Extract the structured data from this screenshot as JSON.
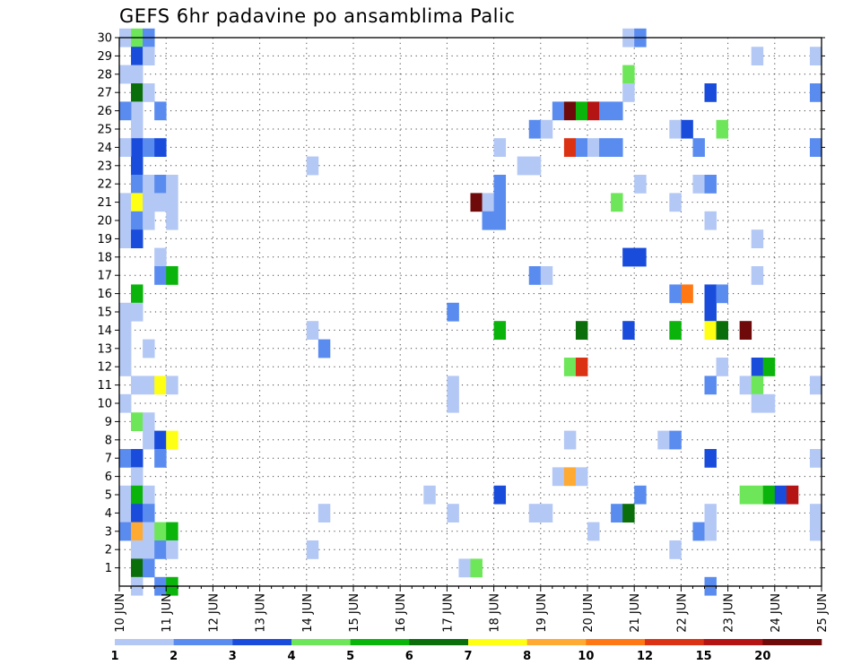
{
  "chart_data": {
    "type": "heatmap",
    "title": "GEFS 6hr padavine po ansamblima Palic",
    "xlabel": "",
    "ylabel": "",
    "x_tick_labels": [
      "10 JUN",
      "11 JUN",
      "12 JUN",
      "13 JUN",
      "14 JUN",
      "15 JUN",
      "16 JUN",
      "17 JUN",
      "18 JUN",
      "19 JUN",
      "20 JUN",
      "21 JUN",
      "22 JUN",
      "23 JUN",
      "24 JUN",
      "25 JUN"
    ],
    "x_range": [
      "10 JUN 00Z",
      "25 JUN 00Z"
    ],
    "x_step": "6hr",
    "y_tick_labels": [
      "1",
      "2",
      "3",
      "4",
      "5",
      "6",
      "7",
      "8",
      "9",
      "10",
      "11",
      "12",
      "13",
      "14",
      "15",
      "16",
      "17",
      "18",
      "19",
      "20",
      "21",
      "22",
      "23",
      "24",
      "25",
      "26",
      "27",
      "28",
      "29",
      "30"
    ],
    "y_range": [
      0,
      30
    ],
    "grid": true,
    "colorbar": {
      "labels": [
        "1",
        "2",
        "3",
        "4",
        "5",
        "6",
        "7",
        "8",
        "10",
        "12",
        "15",
        "20"
      ],
      "colors": [
        "#b4c8f5",
        "#5a8cf0",
        "#1a4cdc",
        "#6ee65a",
        "#0ab40a",
        "#0a6e0a",
        "#ffff14",
        "#ffaa32",
        "#ff7814",
        "#dc3214",
        "#b41414",
        "#6e0a0a"
      ]
    },
    "cells": [
      {
        "step": 0,
        "member": 30,
        "bin": 0
      },
      {
        "step": 1,
        "member": 30,
        "bin": 3
      },
      {
        "step": 1,
        "member": 29,
        "bin": 2
      },
      {
        "step": 0,
        "member": 28,
        "bin": 0
      },
      {
        "step": 1,
        "member": 28,
        "bin": 0
      },
      {
        "step": 1,
        "member": 27,
        "bin": 5
      },
      {
        "step": 1,
        "member": 26,
        "bin": 0
      },
      {
        "step": 0,
        "member": 26,
        "bin": 1
      },
      {
        "step": 1,
        "member": 25,
        "bin": 0
      },
      {
        "step": 1,
        "member": 24,
        "bin": 2
      },
      {
        "step": 0,
        "member": 24,
        "bin": 0
      },
      {
        "step": 1,
        "member": 23,
        "bin": 2
      },
      {
        "step": 1,
        "member": 22,
        "bin": 1
      },
      {
        "step": 0,
        "member": 21,
        "bin": 0
      },
      {
        "step": 1,
        "member": 21,
        "bin": 6
      },
      {
        "step": 0,
        "member": 20,
        "bin": 0
      },
      {
        "step": 1,
        "member": 20,
        "bin": 1
      },
      {
        "step": 0,
        "member": 19,
        "bin": 0
      },
      {
        "step": 1,
        "member": 19,
        "bin": 2
      },
      {
        "step": 1,
        "member": 16,
        "bin": 4
      },
      {
        "step": 0,
        "member": 15,
        "bin": 0
      },
      {
        "step": 1,
        "member": 15,
        "bin": 0
      },
      {
        "step": 0,
        "member": 14,
        "bin": 0
      },
      {
        "step": 0,
        "member": 13,
        "bin": 0
      },
      {
        "step": 0,
        "member": 12,
        "bin": 0
      },
      {
        "step": 1,
        "member": 11,
        "bin": 0
      },
      {
        "step": 0,
        "member": 10,
        "bin": 0
      },
      {
        "step": 1,
        "member": 9,
        "bin": 3
      },
      {
        "step": 0,
        "member": 7,
        "bin": 1
      },
      {
        "step": 1,
        "member": 7,
        "bin": 2
      },
      {
        "step": 1,
        "member": 6,
        "bin": 0
      },
      {
        "step": 0,
        "member": 5,
        "bin": 0
      },
      {
        "step": 1,
        "member": 5,
        "bin": 4
      },
      {
        "step": 0,
        "member": 4,
        "bin": 0
      },
      {
        "step": 1,
        "member": 4,
        "bin": 2
      },
      {
        "step": 0,
        "member": 3,
        "bin": 1
      },
      {
        "step": 1,
        "member": 3,
        "bin": 7
      },
      {
        "step": 1,
        "member": 2,
        "bin": 0
      },
      {
        "step": 1,
        "member": 1,
        "bin": 5
      },
      {
        "step": 1,
        "member": 0,
        "bin": 0
      },
      {
        "step": 2,
        "member": 30,
        "bin": 1
      },
      {
        "step": 2,
        "member": 29,
        "bin": 0
      },
      {
        "step": 2,
        "member": 27,
        "bin": 0
      },
      {
        "step": 2,
        "member": 24,
        "bin": 1
      },
      {
        "step": 2,
        "member": 22,
        "bin": 0
      },
      {
        "step": 2,
        "member": 21,
        "bin": 0
      },
      {
        "step": 2,
        "member": 20,
        "bin": 0
      },
      {
        "step": 2,
        "member": 13,
        "bin": 0
      },
      {
        "step": 2,
        "member": 11,
        "bin": 0
      },
      {
        "step": 2,
        "member": 9,
        "bin": 0
      },
      {
        "step": 2,
        "member": 8,
        "bin": 0
      },
      {
        "step": 2,
        "member": 5,
        "bin": 0
      },
      {
        "step": 2,
        "member": 4,
        "bin": 1
      },
      {
        "step": 2,
        "member": 3,
        "bin": 0
      },
      {
        "step": 2,
        "member": 2,
        "bin": 0
      },
      {
        "step": 2,
        "member": 1,
        "bin": 1
      },
      {
        "step": 3,
        "member": 26,
        "bin": 1
      },
      {
        "step": 3,
        "member": 24,
        "bin": 2
      },
      {
        "step": 3,
        "member": 22,
        "bin": 1
      },
      {
        "step": 4,
        "member": 22,
        "bin": 0
      },
      {
        "step": 3,
        "member": 21,
        "bin": 0
      },
      {
        "step": 4,
        "member": 21,
        "bin": 0
      },
      {
        "step": 4,
        "member": 20,
        "bin": 0
      },
      {
        "step": 3,
        "member": 18,
        "bin": 0
      },
      {
        "step": 3,
        "member": 17,
        "bin": 1
      },
      {
        "step": 4,
        "member": 17,
        "bin": 4
      },
      {
        "step": 3,
        "member": 11,
        "bin": 6
      },
      {
        "step": 4,
        "member": 11,
        "bin": 0
      },
      {
        "step": 3,
        "member": 8,
        "bin": 2
      },
      {
        "step": 4,
        "member": 8,
        "bin": 6
      },
      {
        "step": 3,
        "member": 7,
        "bin": 1
      },
      {
        "step": 3,
        "member": 3,
        "bin": 3
      },
      {
        "step": 4,
        "member": 3,
        "bin": 4
      },
      {
        "step": 3,
        "member": 2,
        "bin": 1
      },
      {
        "step": 4,
        "member": 2,
        "bin": 0
      },
      {
        "step": 3,
        "member": 0,
        "bin": 1
      },
      {
        "step": 4,
        "member": 0,
        "bin": 4
      },
      {
        "step": 16,
        "member": 23,
        "bin": 0
      },
      {
        "step": 16,
        "member": 14,
        "bin": 0
      },
      {
        "step": 17,
        "member": 13,
        "bin": 1
      },
      {
        "step": 17,
        "member": 4,
        "bin": 0
      },
      {
        "step": 16,
        "member": 2,
        "bin": 0
      },
      {
        "step": 26,
        "member": 5,
        "bin": 0
      },
      {
        "step": 28,
        "member": 15,
        "bin": 1
      },
      {
        "step": 28,
        "member": 11,
        "bin": 0
      },
      {
        "step": 28,
        "member": 10,
        "bin": 0
      },
      {
        "step": 28,
        "member": 4,
        "bin": 0
      },
      {
        "step": 29,
        "member": 1,
        "bin": 0
      },
      {
        "step": 30,
        "member": 1,
        "bin": 3
      },
      {
        "step": 30,
        "member": 21,
        "bin": 11
      },
      {
        "step": 31,
        "member": 21,
        "bin": 0
      },
      {
        "step": 32,
        "member": 21,
        "bin": 1
      },
      {
        "step": 32,
        "member": 22,
        "bin": 1
      },
      {
        "step": 32,
        "member": 20,
        "bin": 1
      },
      {
        "step": 31,
        "member": 20,
        "bin": 1
      },
      {
        "step": 32,
        "member": 24,
        "bin": 0
      },
      {
        "step": 32,
        "member": 14,
        "bin": 4
      },
      {
        "step": 32,
        "member": 5,
        "bin": 2
      },
      {
        "step": 35,
        "member": 25,
        "bin": 1
      },
      {
        "step": 36,
        "member": 25,
        "bin": 0
      },
      {
        "step": 34,
        "member": 23,
        "bin": 0
      },
      {
        "step": 35,
        "member": 23,
        "bin": 0
      },
      {
        "step": 35,
        "member": 17,
        "bin": 1
      },
      {
        "step": 36,
        "member": 17,
        "bin": 0
      },
      {
        "step": 35,
        "member": 4,
        "bin": 0
      },
      {
        "step": 36,
        "member": 4,
        "bin": 0
      },
      {
        "step": 37,
        "member": 26,
        "bin": 1
      },
      {
        "step": 38,
        "member": 26,
        "bin": 11
      },
      {
        "step": 39,
        "member": 26,
        "bin": 4
      },
      {
        "step": 40,
        "member": 26,
        "bin": 10
      },
      {
        "step": 41,
        "member": 26,
        "bin": 1
      },
      {
        "step": 42,
        "member": 26,
        "bin": 1
      },
      {
        "step": 38,
        "member": 24,
        "bin": 9
      },
      {
        "step": 39,
        "member": 24,
        "bin": 1
      },
      {
        "step": 40,
        "member": 24,
        "bin": 0
      },
      {
        "step": 41,
        "member": 24,
        "bin": 1
      },
      {
        "step": 42,
        "member": 24,
        "bin": 1
      },
      {
        "step": 39,
        "member": 14,
        "bin": 5
      },
      {
        "step": 38,
        "member": 12,
        "bin": 3
      },
      {
        "step": 39,
        "member": 12,
        "bin": 9
      },
      {
        "step": 38,
        "member": 8,
        "bin": 0
      },
      {
        "step": 37,
        "member": 6,
        "bin": 0
      },
      {
        "step": 38,
        "member": 6,
        "bin": 7
      },
      {
        "step": 39,
        "member": 6,
        "bin": 0
      },
      {
        "step": 40,
        "member": 3,
        "bin": 0
      },
      {
        "step": 43,
        "member": 30,
        "bin": 0
      },
      {
        "step": 44,
        "member": 30,
        "bin": 1
      },
      {
        "step": 43,
        "member": 28,
        "bin": 3
      },
      {
        "step": 43,
        "member": 27,
        "bin": 0
      },
      {
        "step": 44,
        "member": 22,
        "bin": 0
      },
      {
        "step": 42,
        "member": 21,
        "bin": 3
      },
      {
        "step": 43,
        "member": 18,
        "bin": 2
      },
      {
        "step": 44,
        "member": 18,
        "bin": 2
      },
      {
        "step": 43,
        "member": 14,
        "bin": 2
      },
      {
        "step": 44,
        "member": 5,
        "bin": 1
      },
      {
        "step": 42,
        "member": 4,
        "bin": 1
      },
      {
        "step": 43,
        "member": 4,
        "bin": 5
      },
      {
        "step": 47,
        "member": 25,
        "bin": 0
      },
      {
        "step": 48,
        "member": 25,
        "bin": 2
      },
      {
        "step": 47,
        "member": 21,
        "bin": 0
      },
      {
        "step": 48,
        "member": 16,
        "bin": 8
      },
      {
        "step": 47,
        "member": 16,
        "bin": 1
      },
      {
        "step": 47,
        "member": 14,
        "bin": 4
      },
      {
        "step": 46,
        "member": 8,
        "bin": 0
      },
      {
        "step": 47,
        "member": 8,
        "bin": 1
      },
      {
        "step": 47,
        "member": 2,
        "bin": 0
      },
      {
        "step": 49,
        "member": 24,
        "bin": 1
      },
      {
        "step": 50,
        "member": 27,
        "bin": 2
      },
      {
        "step": 51,
        "member": 25,
        "bin": 3
      },
      {
        "step": 49,
        "member": 22,
        "bin": 0
      },
      {
        "step": 50,
        "member": 22,
        "bin": 1
      },
      {
        "step": 50,
        "member": 20,
        "bin": 0
      },
      {
        "step": 50,
        "member": 16,
        "bin": 2
      },
      {
        "step": 51,
        "member": 16,
        "bin": 1
      },
      {
        "step": 50,
        "member": 15,
        "bin": 2
      },
      {
        "step": 50,
        "member": 14,
        "bin": 6
      },
      {
        "step": 51,
        "member": 14,
        "bin": 5
      },
      {
        "step": 53,
        "member": 14,
        "bin": 11
      },
      {
        "step": 51,
        "member": 12,
        "bin": 0
      },
      {
        "step": 50,
        "member": 11,
        "bin": 1
      },
      {
        "step": 50,
        "member": 7,
        "bin": 2
      },
      {
        "step": 49,
        "member": 3,
        "bin": 1
      },
      {
        "step": 50,
        "member": 3,
        "bin": 0
      },
      {
        "step": 50,
        "member": 4,
        "bin": 0
      },
      {
        "step": 50,
        "member": 0,
        "bin": 1
      },
      {
        "step": 54,
        "member": 29,
        "bin": 0
      },
      {
        "step": 54,
        "member": 19,
        "bin": 0
      },
      {
        "step": 54,
        "member": 17,
        "bin": 0
      },
      {
        "step": 54,
        "member": 12,
        "bin": 2
      },
      {
        "step": 55,
        "member": 12,
        "bin": 4
      },
      {
        "step": 53,
        "member": 11,
        "bin": 0
      },
      {
        "step": 54,
        "member": 11,
        "bin": 3
      },
      {
        "step": 54,
        "member": 10,
        "bin": 0
      },
      {
        "step": 55,
        "member": 10,
        "bin": 0
      },
      {
        "step": 53,
        "member": 5,
        "bin": 3
      },
      {
        "step": 54,
        "member": 5,
        "bin": 3
      },
      {
        "step": 55,
        "member": 5,
        "bin": 4
      },
      {
        "step": 56,
        "member": 5,
        "bin": 2
      },
      {
        "step": 57,
        "member": 5,
        "bin": 10
      },
      {
        "step": 59,
        "member": 29,
        "bin": 0
      },
      {
        "step": 59,
        "member": 27,
        "bin": 1
      },
      {
        "step": 59,
        "member": 24,
        "bin": 1
      },
      {
        "step": 59,
        "member": 11,
        "bin": 0
      },
      {
        "step": 59,
        "member": 7,
        "bin": 0
      },
      {
        "step": 59,
        "member": 4,
        "bin": 0
      },
      {
        "step": 59,
        "member": 3,
        "bin": 0
      }
    ]
  }
}
